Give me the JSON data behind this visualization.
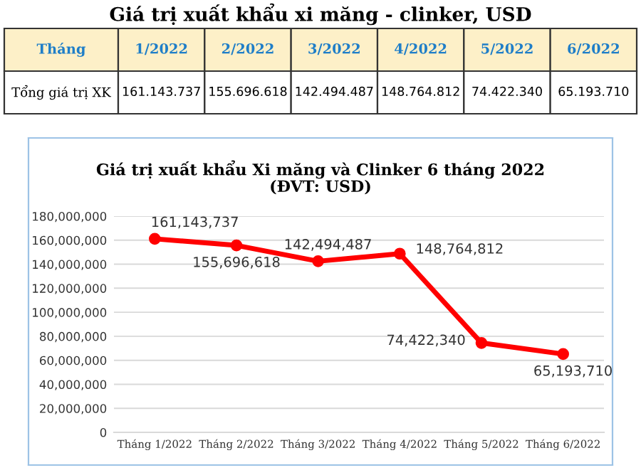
{
  "chart_data": [
    {
      "type": "other",
      "title": "Giá trị xuất khẩu xi măng - clinker, USD",
      "categories": [
        "1/2022",
        "2/2022",
        "3/2022",
        "4/2022",
        "5/2022",
        "6/2022"
      ],
      "value_labels": [
        "161.143.737",
        "155.696.618",
        "142.494.487",
        "148.764.812",
        "74.422.340",
        "65.193.710"
      ],
      "annotations": [
        "Tháng",
        "Tổng giá trị XK"
      ]
    },
    {
      "type": "line",
      "title": "Giá trị xuất khẩu Xi măng và Clinker 6 tháng 2022\n(ĐVT: USD)",
      "categories": [
        "Tháng 1/2022",
        "Tháng 2/2022",
        "Tháng 3/2022",
        "Tháng 4/2022",
        "Tháng 5/2022",
        "Tháng 6/2022"
      ],
      "series": [
        {
          "color": "#ff0000",
          "values": [
            161143737,
            155696618,
            142494487,
            148764812,
            74422340,
            65193710
          ]
        }
      ],
      "value_labels": [
        "161,143,737",
        "155,696,618",
        "142,494,487",
        "148,764,812",
        "74,422,340",
        "65,193,710"
      ],
      "ylim": [
        0,
        180000000
      ],
      "yticks": [
        {
          "value": 0,
          "label": "0"
        },
        {
          "value": 20000000,
          "label": "20,000,000"
        },
        {
          "value": 40000000,
          "label": "40,000,000"
        },
        {
          "value": 60000000,
          "label": "60,000,000"
        },
        {
          "value": 80000000,
          "label": "80,000,000"
        },
        {
          "value": 100000000,
          "label": "100,000,000"
        },
        {
          "value": 120000000,
          "label": "120,000,000"
        },
        {
          "value": 140000000,
          "label": "140,000,000"
        },
        {
          "value": 160000000,
          "label": "160,000,000"
        },
        {
          "value": 180000000,
          "label": "180,000,000"
        }
      ],
      "grid": "y",
      "marker": "circle",
      "line_style": "solid"
    }
  ]
}
